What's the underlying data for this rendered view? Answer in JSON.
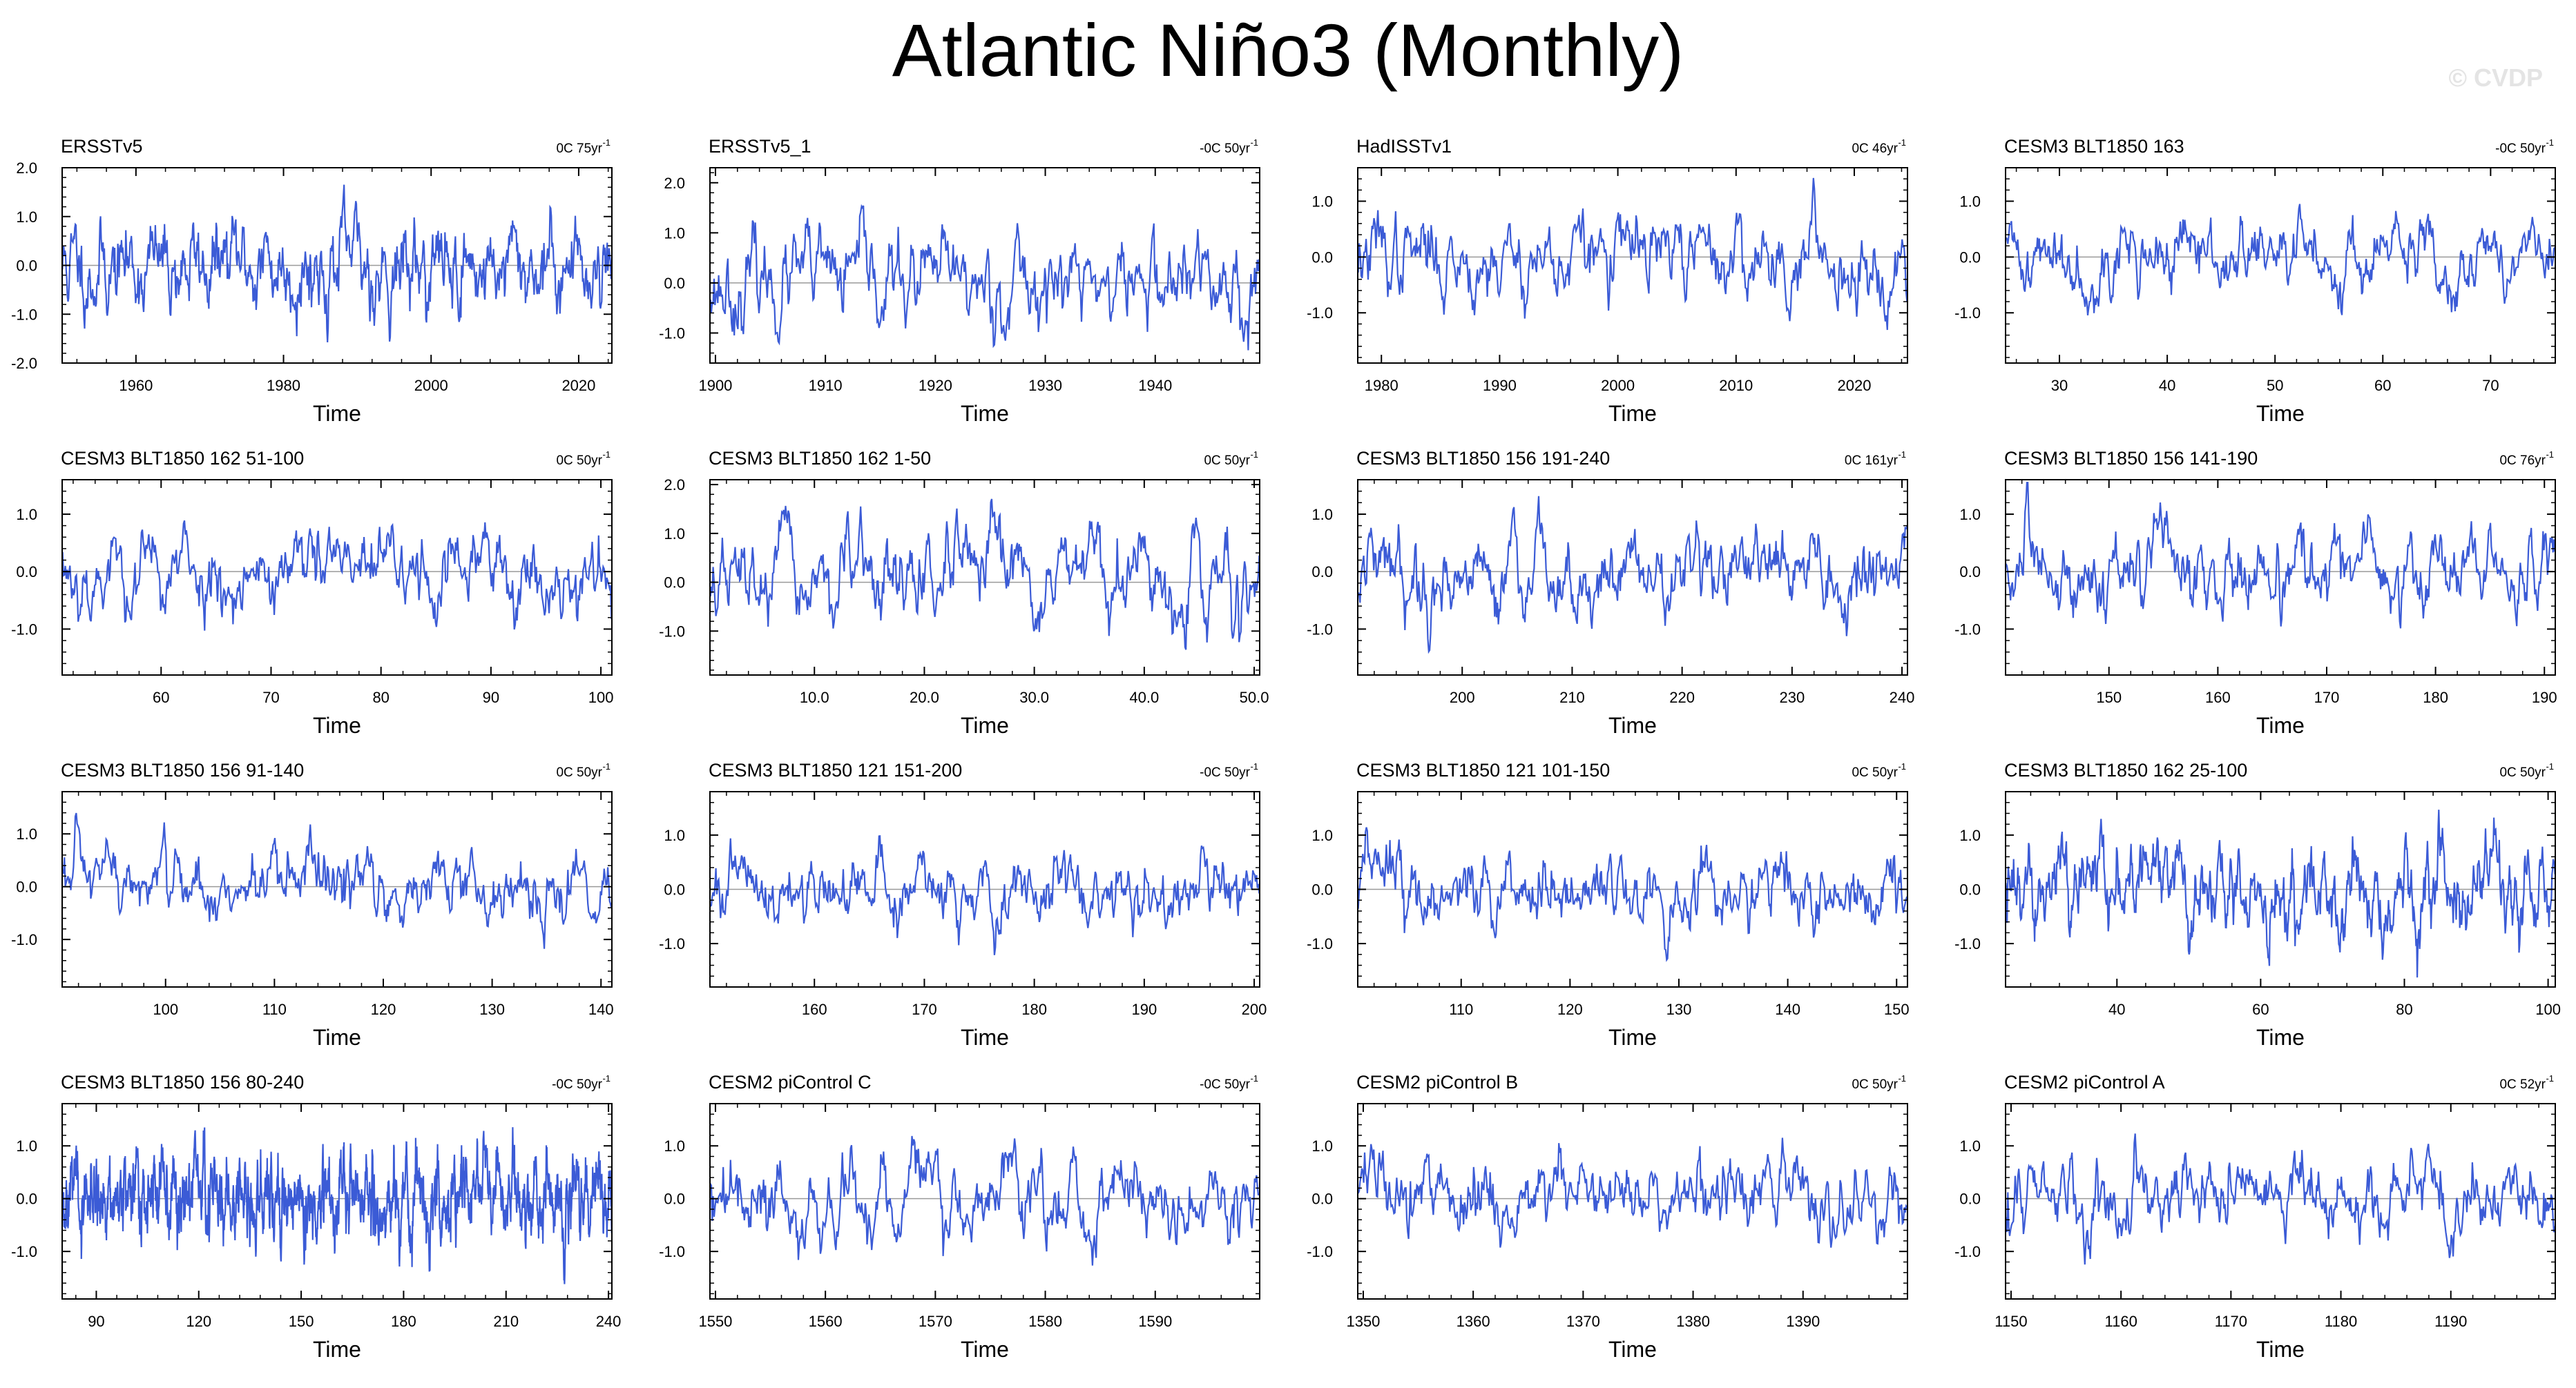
{
  "title": "Atlantic Niño3 (Monthly)",
  "watermark": "© CVDP",
  "line_color": "#3b5bd6",
  "chart_data": [
    {
      "type": "line",
      "title": "ERSSTv5",
      "trend": "0C 75yr",
      "xlabel": "Time",
      "xlim": [
        1950,
        2024.5
      ],
      "ylim": [
        -2.0,
        2.0
      ],
      "yticks": [
        -2.0,
        -1.0,
        0.0,
        1.0,
        2.0
      ],
      "ytick_labels": [
        "-2.0",
        "-1.0",
        "0.0",
        "1.0",
        "2.0"
      ],
      "xticks": [
        1960,
        1980,
        2000,
        2020
      ],
      "xtick_labels": [
        "1960",
        "1980",
        "2000",
        "2020"
      ],
      "amp": 0.5,
      "seed": 11
    },
    {
      "type": "line",
      "title": "ERSSTv5_1",
      "trend": "-0C 50yr",
      "xlabel": "Time",
      "xlim": [
        1899.5,
        1949.5
      ],
      "ylim": [
        -1.6,
        2.3
      ],
      "yticks": [
        -1.0,
        0.0,
        1.0,
        2.0
      ],
      "ytick_labels": [
        "-1.0",
        "0.0",
        "1.0",
        "2.0"
      ],
      "xticks": [
        1900,
        1910,
        1920,
        1930,
        1940
      ],
      "xtick_labels": [
        "1900",
        "1910",
        "1920",
        "1930",
        "1940"
      ],
      "amp": 0.5,
      "seed": 23
    },
    {
      "type": "line",
      "title": "HadISSTv1",
      "trend": "0C 46yr",
      "xlabel": "Time",
      "xlim": [
        1978,
        2024.5
      ],
      "ylim": [
        -1.9,
        1.6
      ],
      "yticks": [
        -1.0,
        0.0,
        1.0
      ],
      "ytick_labels": [
        "-1.0",
        "0.0",
        "1.0"
      ],
      "xticks": [
        1980,
        1990,
        2000,
        2010,
        2020
      ],
      "xtick_labels": [
        "1980",
        "1990",
        "2000",
        "2010",
        "2020"
      ],
      "amp": 0.42,
      "seed": 37
    },
    {
      "type": "line",
      "title": "CESM3 BLT1850 163",
      "trend": "-0C 50yr",
      "xlabel": "Time",
      "xlim": [
        25,
        76
      ],
      "ylim": [
        -1.9,
        1.6
      ],
      "yticks": [
        -1.0,
        0.0,
        1.0
      ],
      "ytick_labels": [
        "-1.0",
        "0.0",
        "1.0"
      ],
      "xticks": [
        30,
        40,
        50,
        60,
        70
      ],
      "xtick_labels": [
        "30",
        "40",
        "50",
        "60",
        "70"
      ],
      "amp": 0.35,
      "seed": 41
    },
    {
      "type": "line",
      "title": "CESM3 BLT1850 162 51-100",
      "trend": "0C 50yr",
      "xlabel": "Time",
      "xlim": [
        51,
        101
      ],
      "ylim": [
        -1.8,
        1.6
      ],
      "yticks": [
        -1.0,
        0.0,
        1.0
      ],
      "ytick_labels": [
        "-1.0",
        "0.0",
        "1.0"
      ],
      "xticks": [
        60,
        70,
        80,
        90,
        100
      ],
      "xtick_labels": [
        "60",
        "70",
        "80",
        "90",
        "100"
      ],
      "amp": 0.4,
      "seed": 53
    },
    {
      "type": "line",
      "title": "CESM3 BLT1850 162 1-50",
      "trend": "0C 50yr",
      "xlabel": "Time",
      "xlim": [
        0.5,
        50.5
      ],
      "ylim": [
        -1.9,
        2.1
      ],
      "yticks": [
        -1.0,
        0.0,
        1.0,
        2.0
      ],
      "ytick_labels": [
        "-1.0",
        "0.0",
        "1.0",
        "2.0"
      ],
      "xticks": [
        10,
        20,
        30,
        40,
        50
      ],
      "xtick_labels": [
        "10.0",
        "20.0",
        "30.0",
        "40.0",
        "50.0"
      ],
      "amp": 0.48,
      "seed": 67
    },
    {
      "type": "line",
      "title": "CESM3 BLT1850 156 191-240",
      "trend": "0C 161yr",
      "xlabel": "Time",
      "xlim": [
        190.5,
        240.5
      ],
      "ylim": [
        -1.8,
        1.6
      ],
      "yticks": [
        -1.0,
        0.0,
        1.0
      ],
      "ytick_labels": [
        "-1.0",
        "0.0",
        "1.0"
      ],
      "xticks": [
        200,
        210,
        220,
        230,
        240
      ],
      "xtick_labels": [
        "200",
        "210",
        "220",
        "230",
        "240"
      ],
      "amp": 0.4,
      "seed": 79
    },
    {
      "type": "line",
      "title": "CESM3 BLT1850 156 141-190",
      "trend": "0C 76yr",
      "xlabel": "Time",
      "xlim": [
        140.5,
        191
      ],
      "ylim": [
        -1.8,
        1.6
      ],
      "yticks": [
        -1.0,
        0.0,
        1.0
      ],
      "ytick_labels": [
        "-1.0",
        "0.0",
        "1.0"
      ],
      "xticks": [
        150,
        160,
        170,
        180,
        190
      ],
      "xtick_labels": [
        "150",
        "160",
        "170",
        "180",
        "190"
      ],
      "amp": 0.4,
      "seed": 83
    },
    {
      "type": "line",
      "title": "CESM3 BLT1850 156 91-140",
      "trend": "0C 50yr",
      "xlabel": "Time",
      "xlim": [
        90.5,
        141
      ],
      "ylim": [
        -1.9,
        1.8
      ],
      "yticks": [
        -1.0,
        0.0,
        1.0
      ],
      "ytick_labels": [
        "-1.0",
        "0.0",
        "1.0"
      ],
      "xticks": [
        100,
        110,
        120,
        130,
        140
      ],
      "xtick_labels": [
        "100",
        "110",
        "120",
        "130",
        "140"
      ],
      "amp": 0.38,
      "seed": 97
    },
    {
      "type": "line",
      "title": "CESM3 BLT1850 121 151-200",
      "trend": "-0C 50yr",
      "xlabel": "Time",
      "xlim": [
        150.5,
        200.5
      ],
      "ylim": [
        -1.8,
        1.8
      ],
      "yticks": [
        -1.0,
        0.0,
        1.0
      ],
      "ytick_labels": [
        "-1.0",
        "0.0",
        "1.0"
      ],
      "xticks": [
        160,
        170,
        180,
        190,
        200
      ],
      "xtick_labels": [
        "160",
        "170",
        "180",
        "190",
        "200"
      ],
      "amp": 0.35,
      "seed": 101
    },
    {
      "type": "line",
      "title": "CESM3 BLT1850 121 101-150",
      "trend": "0C 50yr",
      "xlabel": "Time",
      "xlim": [
        100.5,
        151
      ],
      "ylim": [
        -1.8,
        1.8
      ],
      "yticks": [
        -1.0,
        0.0,
        1.0
      ],
      "ytick_labels": [
        "-1.0",
        "0.0",
        "1.0"
      ],
      "xticks": [
        110,
        120,
        130,
        140,
        150
      ],
      "xtick_labels": [
        "110",
        "120",
        "130",
        "140",
        "150"
      ],
      "amp": 0.38,
      "seed": 113
    },
    {
      "type": "line",
      "title": "CESM3 BLT1850 162 25-100",
      "trend": "0C 50yr",
      "xlabel": "Time",
      "xlim": [
        24.5,
        101
      ],
      "ylim": [
        -1.8,
        1.8
      ],
      "yticks": [
        -1.0,
        0.0,
        1.0
      ],
      "ytick_labels": [
        "-1.0",
        "0.0",
        "1.0"
      ],
      "xticks": [
        40,
        60,
        80,
        100
      ],
      "xtick_labels": [
        "40",
        "60",
        "80",
        "100"
      ],
      "amp": 0.42,
      "seed": 127
    },
    {
      "type": "line",
      "title": "CESM3 BLT1850 156 80-240",
      "trend": "-0C 50yr",
      "xlabel": "Time",
      "xlim": [
        80,
        241
      ],
      "ylim": [
        -1.9,
        1.8
      ],
      "yticks": [
        -1.0,
        0.0,
        1.0
      ],
      "ytick_labels": [
        "-1.0",
        "0.0",
        "1.0"
      ],
      "xticks": [
        90,
        120,
        150,
        180,
        210,
        240
      ],
      "xtick_labels": [
        "90",
        "120",
        "150",
        "180",
        "210",
        "240"
      ],
      "amp": 0.45,
      "seed": 131
    },
    {
      "type": "line",
      "title": "CESM2 piControl C",
      "trend": "-0C 50yr",
      "xlabel": "Time",
      "xlim": [
        1549.5,
        1599.5
      ],
      "ylim": [
        -1.9,
        1.8
      ],
      "yticks": [
        -1.0,
        0.0,
        1.0
      ],
      "ytick_labels": [
        "-1.0",
        "0.0",
        "1.0"
      ],
      "xticks": [
        1550,
        1560,
        1570,
        1580,
        1590
      ],
      "xtick_labels": [
        "1550",
        "1560",
        "1570",
        "1580",
        "1590"
      ],
      "amp": 0.4,
      "seed": 139
    },
    {
      "type": "line",
      "title": "CESM2 piControl B",
      "trend": "0C 50yr",
      "xlabel": "Time",
      "xlim": [
        1349.5,
        1399.5
      ],
      "ylim": [
        -1.9,
        1.8
      ],
      "yticks": [
        -1.0,
        0.0,
        1.0
      ],
      "ytick_labels": [
        "-1.0",
        "0.0",
        "1.0"
      ],
      "xticks": [
        1350,
        1360,
        1370,
        1380,
        1390
      ],
      "xtick_labels": [
        "1350",
        "1360",
        "1370",
        "1380",
        "1390"
      ],
      "amp": 0.4,
      "seed": 149
    },
    {
      "type": "line",
      "title": "CESM2 piControl A",
      "trend": "0C 52yr",
      "xlabel": "Time",
      "xlim": [
        1149.5,
        1199.5
      ],
      "ylim": [
        -1.9,
        1.8
      ],
      "yticks": [
        -1.0,
        0.0,
        1.0
      ],
      "ytick_labels": [
        "-1.0",
        "0.0",
        "1.0"
      ],
      "xticks": [
        1150,
        1160,
        1170,
        1180,
        1190
      ],
      "xtick_labels": [
        "1150",
        "1160",
        "1170",
        "1180",
        "1190"
      ],
      "amp": 0.38,
      "seed": 157
    }
  ]
}
